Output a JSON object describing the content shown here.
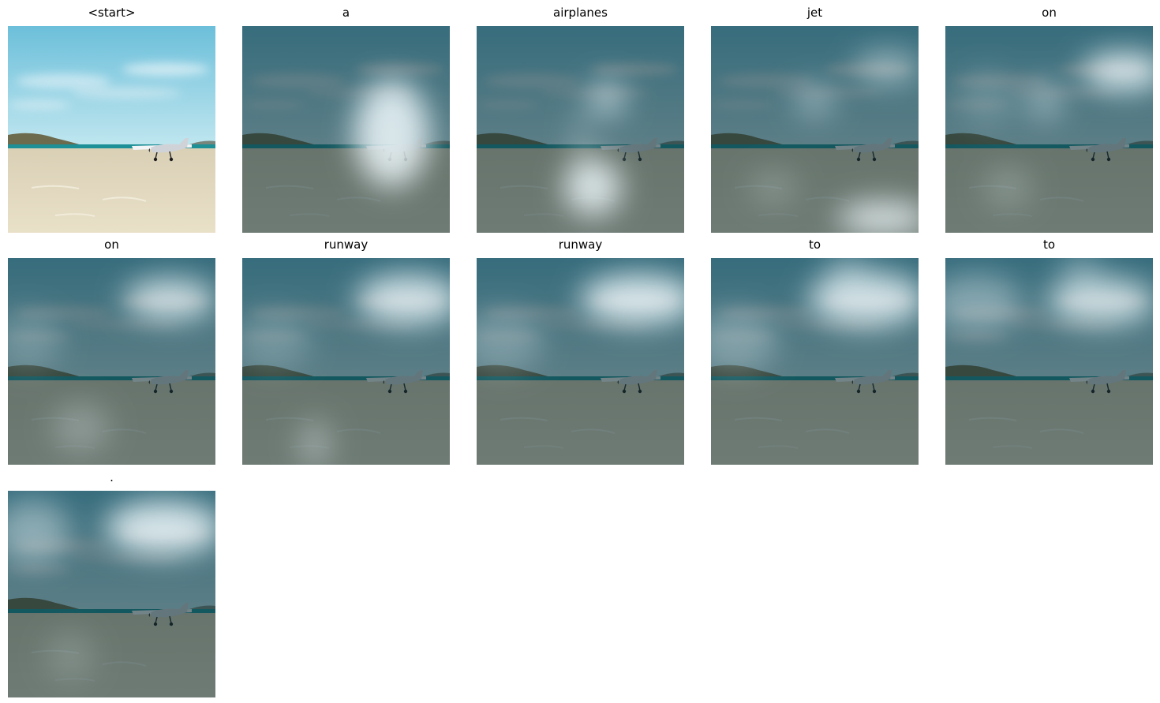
{
  "figure": {
    "panels": [
      {
        "token": "<start>",
        "attention": [],
        "gain": 0.0,
        "dim": 0.0
      },
      {
        "token": "a",
        "attention": [
          [
            0.72,
            0.52,
            0.18,
            0.26,
            1.0
          ]
        ],
        "gain": 1.0,
        "dim": 0.78
      },
      {
        "token": "airplanes",
        "attention": [
          [
            0.63,
            0.35,
            0.09,
            0.09,
            0.65
          ],
          [
            0.56,
            0.78,
            0.14,
            0.14,
            0.95
          ],
          [
            0.5,
            0.6,
            0.03,
            0.22,
            0.4
          ]
        ],
        "gain": 1.0,
        "dim": 0.78
      },
      {
        "token": "jet",
        "attention": [
          [
            0.85,
            0.2,
            0.16,
            0.08,
            0.55
          ],
          [
            0.5,
            0.36,
            0.1,
            0.08,
            0.45
          ],
          [
            0.83,
            0.93,
            0.22,
            0.08,
            0.95
          ],
          [
            0.3,
            0.78,
            0.12,
            0.08,
            0.25
          ]
        ],
        "gain": 1.0,
        "dim": 0.78
      },
      {
        "token": "on",
        "attention": [
          [
            0.86,
            0.22,
            0.2,
            0.09,
            1.0
          ],
          [
            0.48,
            0.36,
            0.09,
            0.1,
            0.45
          ],
          [
            0.2,
            0.35,
            0.14,
            0.14,
            0.2
          ],
          [
            0.3,
            0.78,
            0.12,
            0.1,
            0.25
          ]
        ],
        "gain": 1.0,
        "dim": 0.78
      },
      {
        "token": "on",
        "attention": [
          [
            0.78,
            0.2,
            0.22,
            0.1,
            0.9
          ],
          [
            0.1,
            0.4,
            0.16,
            0.14,
            0.25
          ],
          [
            0.35,
            0.82,
            0.14,
            0.12,
            0.3
          ]
        ],
        "gain": 1.0,
        "dim": 0.78
      },
      {
        "token": "runway",
        "attention": [
          [
            0.8,
            0.2,
            0.25,
            0.12,
            0.95
          ],
          [
            0.15,
            0.4,
            0.18,
            0.14,
            0.25
          ],
          [
            0.35,
            0.9,
            0.08,
            0.12,
            0.4
          ]
        ],
        "gain": 1.0,
        "dim": 0.78
      },
      {
        "token": "runway",
        "attention": [
          [
            0.78,
            0.2,
            0.28,
            0.12,
            1.0
          ],
          [
            0.12,
            0.4,
            0.2,
            0.15,
            0.3
          ]
        ],
        "gain": 1.0,
        "dim": 0.78
      },
      {
        "token": "to",
        "attention": [
          [
            0.75,
            0.2,
            0.28,
            0.13,
            0.95
          ],
          [
            0.12,
            0.4,
            0.2,
            0.15,
            0.35
          ],
          [
            0.65,
            0.05,
            0.1,
            0.08,
            0.35
          ]
        ],
        "gain": 1.0,
        "dim": 0.78
      },
      {
        "token": "to",
        "attention": [
          [
            0.75,
            0.21,
            0.26,
            0.11,
            0.9
          ],
          [
            0.15,
            0.22,
            0.22,
            0.14,
            0.45
          ],
          [
            0.65,
            0.05,
            0.1,
            0.08,
            0.35
          ]
        ],
        "gain": 1.0,
        "dim": 0.78
      },
      {
        "token": ".",
        "attention": [
          [
            0.75,
            0.18,
            0.28,
            0.13,
            1.0
          ],
          [
            0.12,
            0.2,
            0.18,
            0.16,
            0.5
          ],
          [
            0.3,
            0.8,
            0.12,
            0.12,
            0.2
          ]
        ],
        "gain": 1.0,
        "dim": 0.78
      }
    ]
  },
  "colors": {
    "sky": "#7ec6dc",
    "sea": "#1d8f96",
    "sand": "#e9e0c8",
    "hill": "#6c6b4e",
    "plane": "#f3f4f6",
    "overlay": "#0f2c34",
    "highlight": "#eef8fb"
  }
}
